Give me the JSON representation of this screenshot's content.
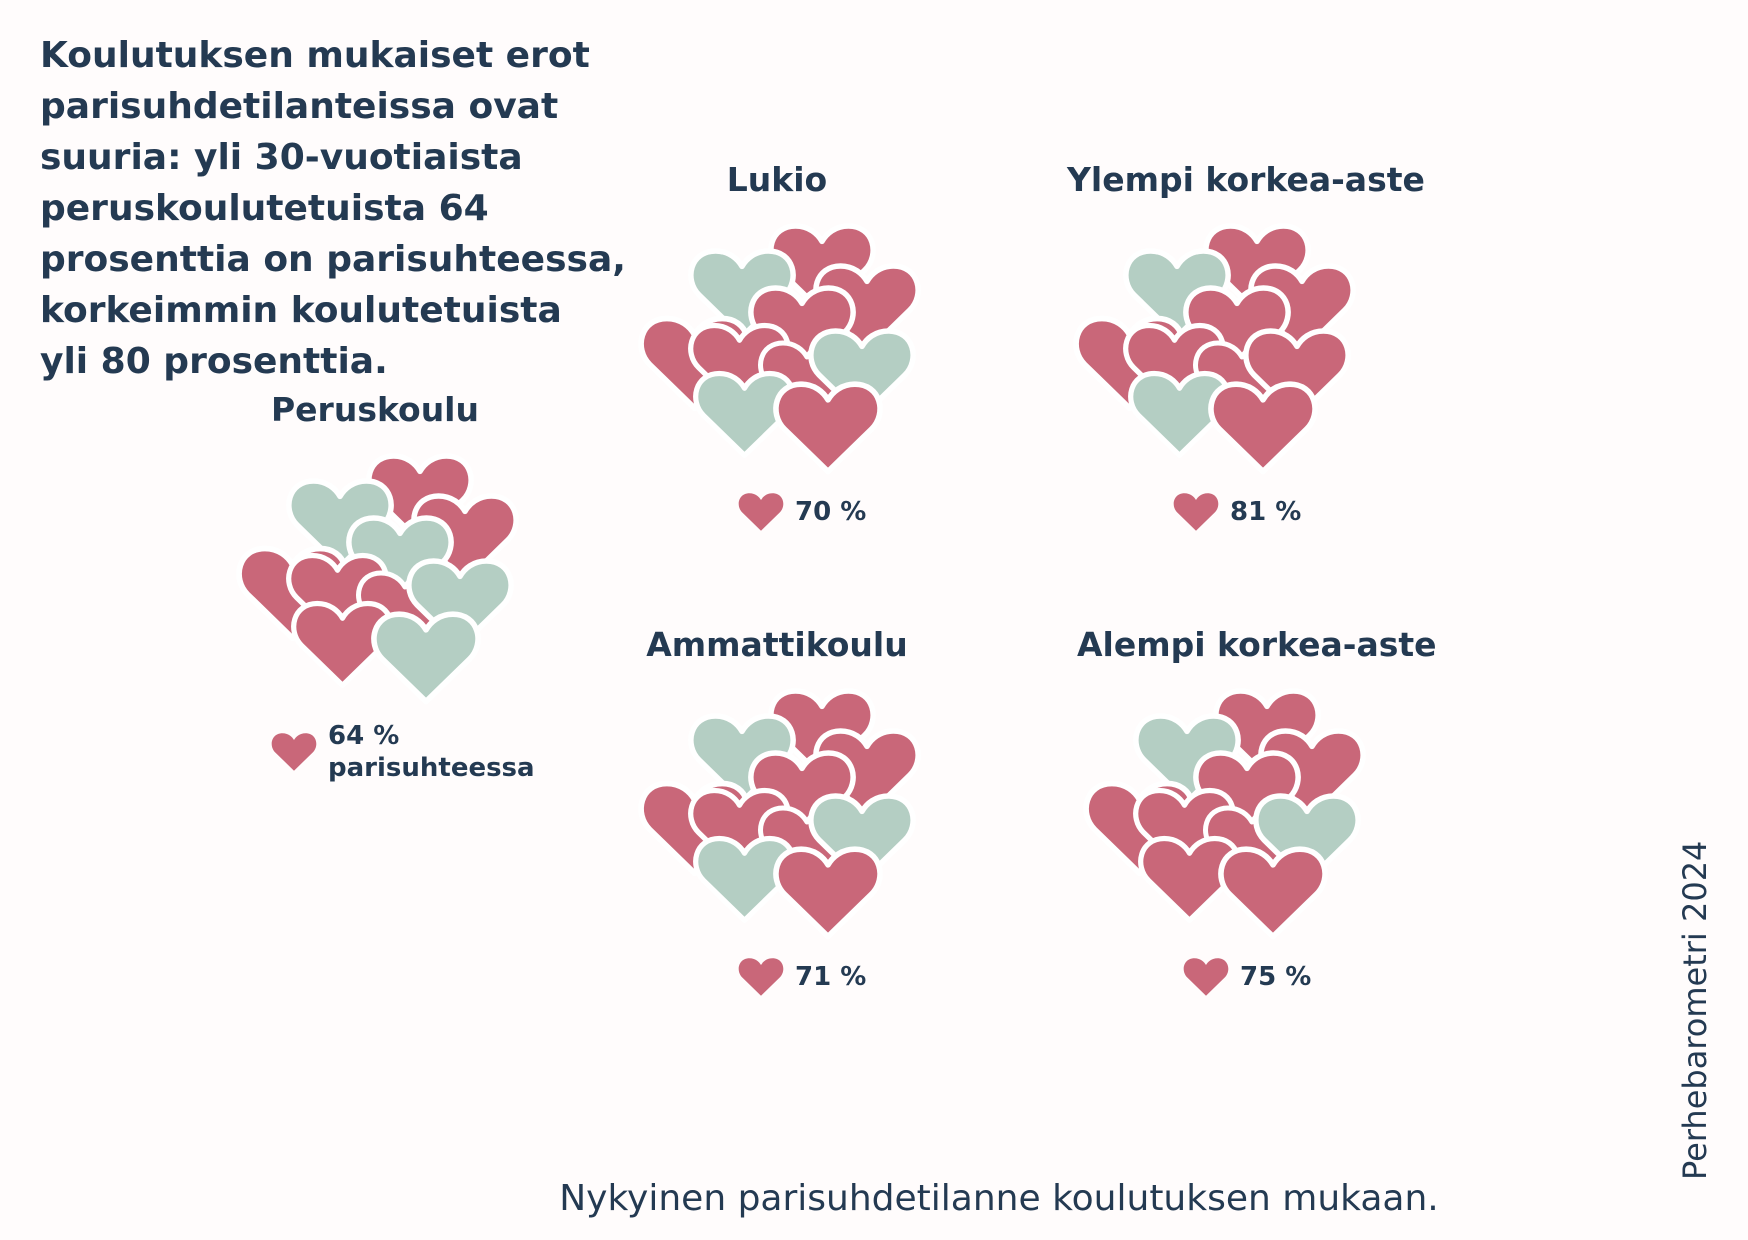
{
  "intro_text": "Koulutuksen mukaiset erot\nparisuhdetilanteissa ovat\nsuuria: yli 30-vuotiaista\nperuskoulutetuista 64\nprosenttia on parisuhteessa,\nkorkeimmin koulutetuista\nyli 80 prosenttia.",
  "caption": "Nykyinen parisuhdetilanne koulutuksen mukaan.",
  "source": "Perhebarometri 2024",
  "colors": {
    "in_relationship": "#c96779",
    "not_in_relationship": "#b4cec3",
    "text": "#243a52"
  },
  "chart_data": {
    "type": "pictogram",
    "unit": "%",
    "categories": [
      "Peruskoulu",
      "Lukio",
      "Ammattikoulu",
      "Ylempi korkea-aste",
      "Alempi korkea-aste"
    ],
    "series": [
      {
        "name": "parisuhteessa",
        "values": [
          64,
          70,
          71,
          81,
          75
        ]
      }
    ],
    "groups": [
      {
        "category": "Peruskoulu",
        "value": 64,
        "label": "64 %\nparisuhteessa",
        "hearts": [
          "pink",
          "green",
          "pink",
          "green",
          "pink",
          "pink",
          "pink",
          "green",
          "pink",
          "green"
        ]
      },
      {
        "category": "Lukio",
        "value": 70,
        "label": "70 %",
        "hearts": [
          "pink",
          "green",
          "pink",
          "pink",
          "pink",
          "pink",
          "pink",
          "green",
          "green",
          "pink"
        ]
      },
      {
        "category": "Ylempi korkea-aste",
        "value": 81,
        "label": "81 %",
        "hearts": [
          "pink",
          "green",
          "pink",
          "pink",
          "pink",
          "pink",
          "pink",
          "pink",
          "green",
          "pink"
        ]
      },
      {
        "category": "Ammattikoulu",
        "value": 71,
        "label": "71 %",
        "hearts": [
          "pink",
          "green",
          "pink",
          "pink",
          "pink",
          "pink",
          "pink",
          "green",
          "green",
          "pink"
        ]
      },
      {
        "category": "Alempi korkea-aste",
        "value": 75,
        "label": "75 %",
        "hearts": [
          "pink",
          "green",
          "pink",
          "pink",
          "pink",
          "pink",
          "pink",
          "green",
          "pink",
          "pink"
        ]
      }
    ]
  }
}
